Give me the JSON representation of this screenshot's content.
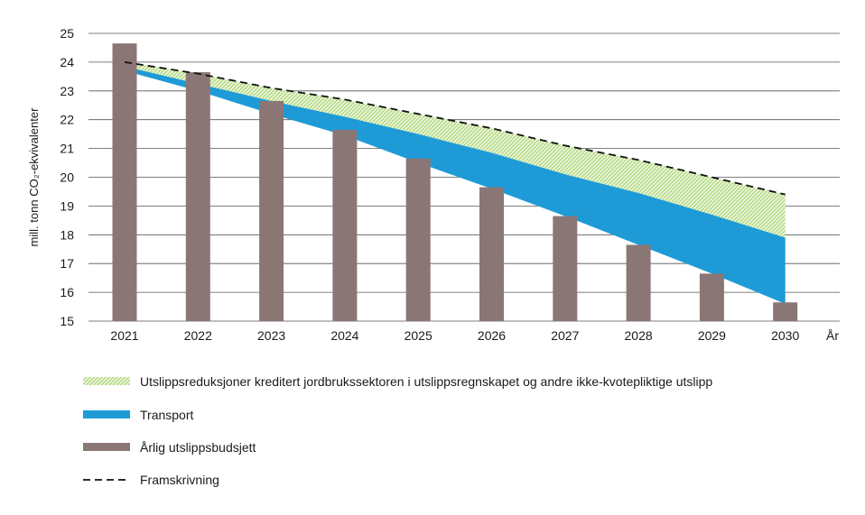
{
  "chart_data": {
    "type": "bar",
    "xlabel": "År",
    "ylabel": "mill. tonn CO₂-ekvivalenter",
    "ylim": [
      15,
      25
    ],
    "yticks": [
      15,
      16,
      17,
      18,
      19,
      20,
      21,
      22,
      23,
      24,
      25
    ],
    "grid": true,
    "categories": [
      "2021",
      "2022",
      "2023",
      "2024",
      "2025",
      "2026",
      "2027",
      "2028",
      "2029",
      "2030"
    ],
    "series": [
      {
        "name": "Årlig utslippsbudsjett",
        "kind": "bar",
        "color": "#8b7676",
        "values": [
          24.65,
          23.65,
          22.65,
          21.65,
          20.65,
          19.65,
          18.65,
          17.65,
          16.65,
          15.65
        ]
      },
      {
        "name": "Framskrivning",
        "kind": "line",
        "style": "dashed",
        "color": "#111111",
        "values": [
          24.0,
          23.6,
          23.1,
          22.7,
          22.2,
          21.7,
          21.1,
          20.6,
          20.0,
          19.4
        ]
      },
      {
        "name": "Utslippsreduksjoner kreditert jordbrukssektoren i utslippsregnskapet og andre ikke-kvotepliktige utslipp",
        "kind": "area",
        "color": "#8fc84f",
        "upper": [
          24.0,
          23.6,
          23.1,
          22.7,
          22.2,
          21.7,
          21.1,
          20.6,
          20.0,
          19.4
        ],
        "lower": [
          23.85,
          23.25,
          22.65,
          22.1,
          21.5,
          20.85,
          20.1,
          19.45,
          18.7,
          17.9
        ]
      },
      {
        "name": "Transport",
        "kind": "area",
        "color": "#1e9bd7",
        "upper": [
          23.85,
          23.25,
          22.65,
          22.1,
          21.5,
          20.85,
          20.1,
          19.45,
          18.7,
          17.9
        ],
        "lower": [
          23.7,
          23.0,
          22.2,
          21.45,
          20.5,
          19.6,
          18.65,
          17.65,
          16.65,
          15.6
        ]
      }
    ],
    "legend": [
      {
        "label": "Utslippsreduksjoner kreditert jordbrukssektoren i utslippsregnskapet og andre ikke-kvotepliktige utslipp",
        "swatch": "hatched-green"
      },
      {
        "label": "Transport",
        "swatch": "blue"
      },
      {
        "label": "Årlig utslippsbudsjett",
        "swatch": "grey"
      },
      {
        "label": "Framskrivning",
        "swatch": "dashed-line"
      }
    ]
  }
}
